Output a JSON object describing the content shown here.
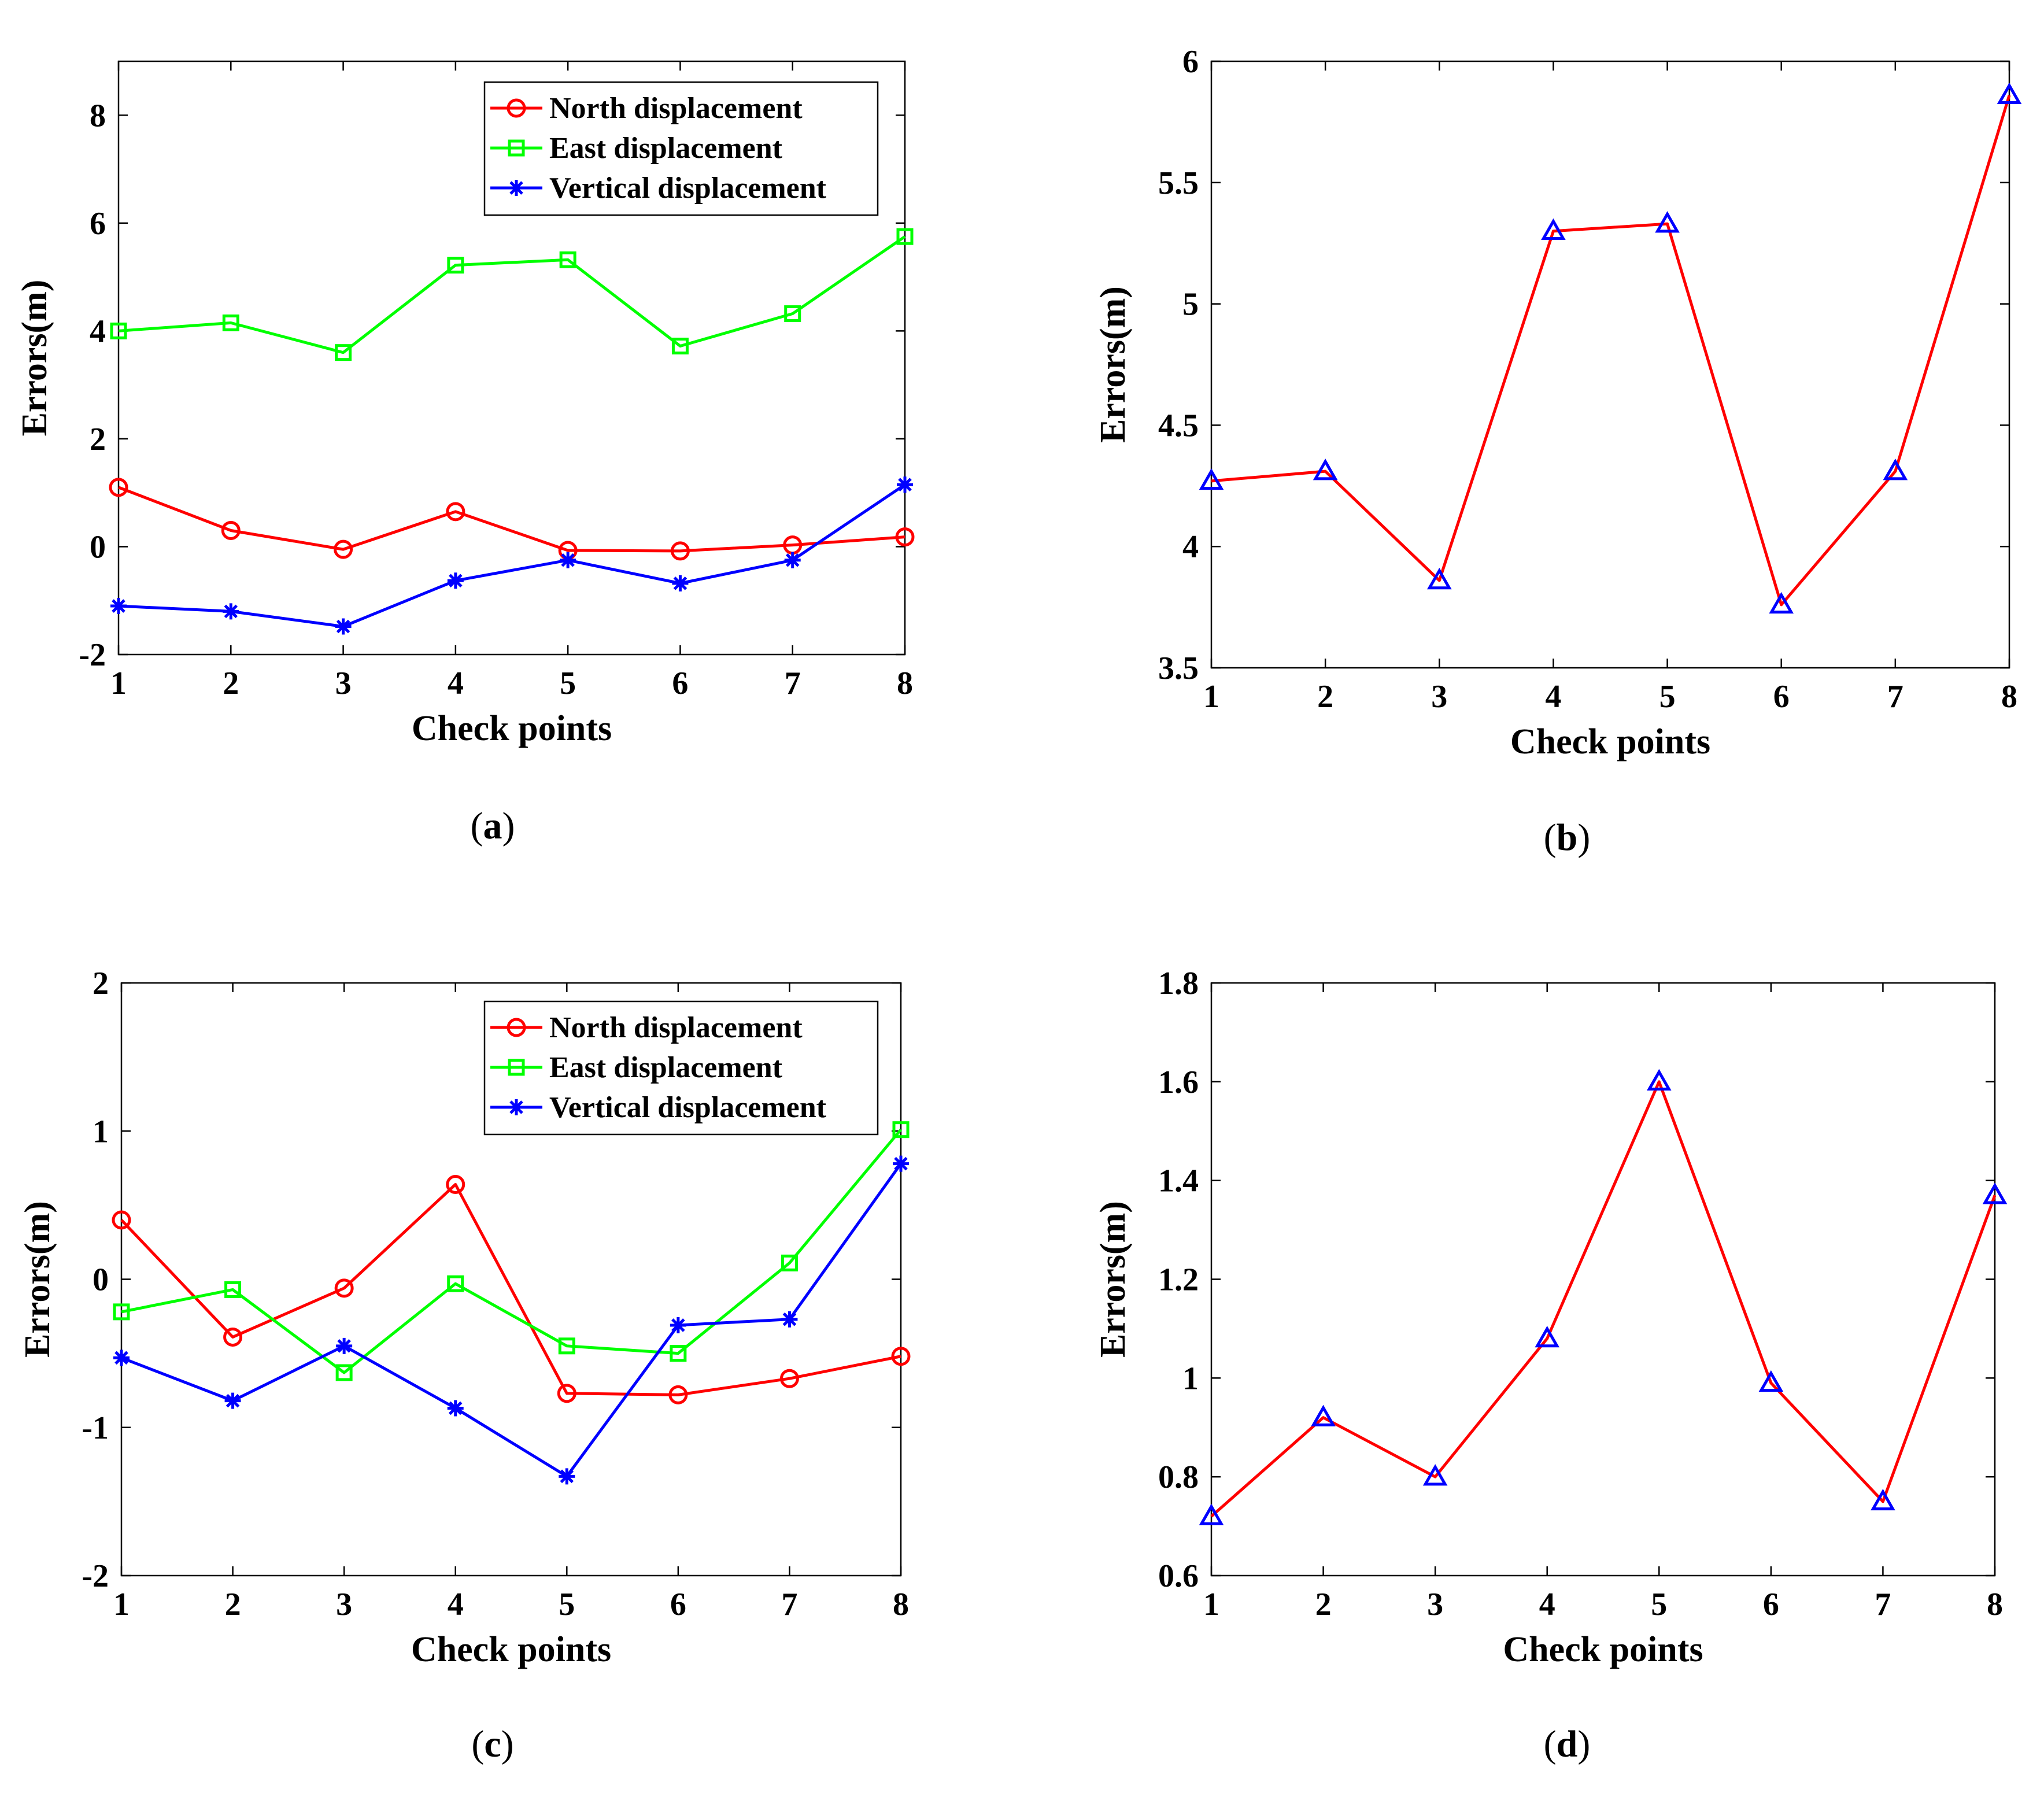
{
  "figure": {
    "panel_order": [
      "a",
      "b",
      "c",
      "d"
    ]
  },
  "chart_data": [
    {
      "id": "a",
      "caption": "a",
      "type": "line",
      "xlabel": "Check points",
      "ylabel": "Errors(m)",
      "x": [
        1,
        2,
        3,
        4,
        5,
        6,
        7,
        8
      ],
      "xlim": [
        1,
        8
      ],
      "ylim": [
        -2,
        9
      ],
      "yticks": [
        -2,
        0,
        2,
        4,
        6,
        8
      ],
      "ytick_labels": [
        "-2",
        "0",
        "2",
        "4",
        "6",
        "8"
      ],
      "legend": "top-right",
      "series": [
        {
          "name": "North displacement",
          "color": "#ff0000",
          "marker": "circle",
          "values": [
            1.1,
            0.3,
            -0.05,
            0.65,
            -0.07,
            -0.08,
            0.03,
            0.18
          ]
        },
        {
          "name": "East displacement",
          "color": "#00ff00",
          "marker": "square",
          "values": [
            4.0,
            4.15,
            3.6,
            5.22,
            5.32,
            3.72,
            4.32,
            5.75
          ]
        },
        {
          "name": "Vertical displacement",
          "color": "#0000ff",
          "marker": "star",
          "values": [
            -1.1,
            -1.2,
            -1.48,
            -0.63,
            -0.25,
            -0.68,
            -0.25,
            1.15
          ]
        }
      ]
    },
    {
      "id": "b",
      "caption": "b",
      "type": "line",
      "xlabel": "Check points",
      "ylabel": "Errors(m)",
      "x": [
        1,
        2,
        3,
        4,
        5,
        6,
        7,
        8
      ],
      "xlim": [
        1,
        8
      ],
      "ylim": [
        3.5,
        6
      ],
      "yticks": [
        3.5,
        4,
        4.5,
        5,
        5.5,
        6
      ],
      "ytick_labels": [
        "3.5",
        "4",
        "4.5",
        "5",
        "5.5",
        "6"
      ],
      "legend": "none",
      "series": [
        {
          "name": "",
          "color": "#ff0000",
          "marker": "triangle",
          "marker_color": "#0000ff",
          "values": [
            4.27,
            4.31,
            3.86,
            5.3,
            5.33,
            3.76,
            4.31,
            5.86
          ]
        }
      ]
    },
    {
      "id": "c",
      "caption": "c",
      "type": "line",
      "xlabel": "Check points",
      "ylabel": "Errors(m)",
      "x": [
        1,
        2,
        3,
        4,
        5,
        6,
        7,
        8
      ],
      "xlim": [
        1,
        8
      ],
      "ylim": [
        -2,
        2
      ],
      "yticks": [
        -2,
        -1,
        0,
        1,
        2
      ],
      "ytick_labels": [
        "-2",
        "-1",
        "0",
        "1",
        "2"
      ],
      "legend": "top-right",
      "series": [
        {
          "name": "North displacement",
          "color": "#ff0000",
          "marker": "circle",
          "values": [
            0.4,
            -0.39,
            -0.06,
            0.64,
            -0.77,
            -0.78,
            -0.67,
            -0.52
          ]
        },
        {
          "name": "East displacement",
          "color": "#00ff00",
          "marker": "square",
          "values": [
            -0.22,
            -0.07,
            -0.63,
            -0.03,
            -0.45,
            -0.5,
            0.11,
            1.01
          ]
        },
        {
          "name": "Vertical displacement",
          "color": "#0000ff",
          "marker": "star",
          "values": [
            -0.53,
            -0.82,
            -0.45,
            -0.87,
            -1.33,
            -0.31,
            -0.27,
            0.78
          ]
        }
      ]
    },
    {
      "id": "d",
      "caption": "d",
      "type": "line",
      "xlabel": "Check points",
      "ylabel": "Errors(m)",
      "x": [
        1,
        2,
        3,
        4,
        5,
        6,
        7,
        8
      ],
      "xlim": [
        1,
        8
      ],
      "ylim": [
        0.6,
        1.8
      ],
      "yticks": [
        0.6,
        0.8,
        1,
        1.2,
        1.4,
        1.6,
        1.8
      ],
      "ytick_labels": [
        "0.6",
        "0.8",
        "1",
        "1.2",
        "1.4",
        "1.6",
        "1.8"
      ],
      "legend": "none",
      "series": [
        {
          "name": "",
          "color": "#ff0000",
          "marker": "triangle",
          "marker_color": "#0000ff",
          "values": [
            0.72,
            0.92,
            0.8,
            1.08,
            1.6,
            0.99,
            0.75,
            1.37
          ]
        }
      ]
    }
  ]
}
